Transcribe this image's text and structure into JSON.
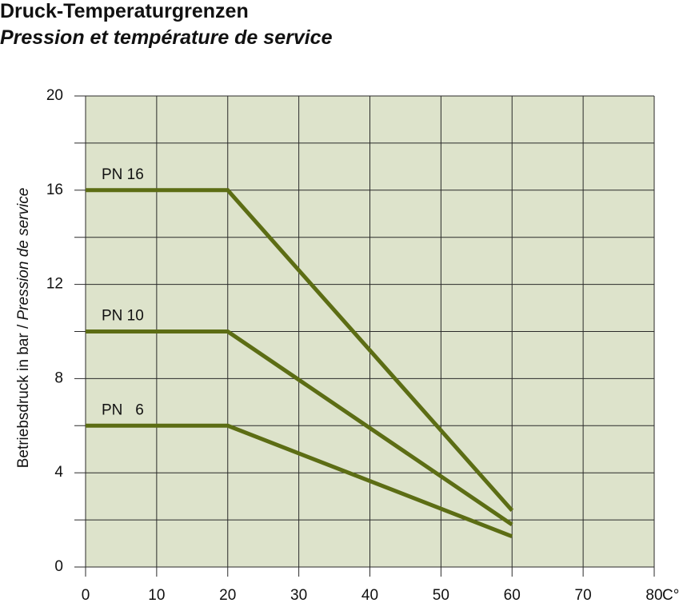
{
  "chart_data": {
    "type": "line",
    "title": "Druck-Temperaturgrenzen",
    "subtitle": "Pression et température de service",
    "ylabel": [
      "Betriebsdruck in bar / ",
      "Pression de service"
    ],
    "xlabel": "C°",
    "x": [
      0,
      20,
      60
    ],
    "series": [
      {
        "name": "PN 16",
        "color": "#5c6d14",
        "values": [
          16,
          16,
          2.4
        ]
      },
      {
        "name": "PN 10",
        "color": "#5c6d14",
        "values": [
          10,
          10,
          1.8
        ]
      },
      {
        "name": "PN   6",
        "color": "#5c6d14",
        "values": [
          6,
          6,
          1.3
        ]
      }
    ],
    "xlim": [
      0,
      80
    ],
    "xticks": [
      0,
      10,
      20,
      30,
      40,
      50,
      60,
      70,
      80
    ],
    "ylim": [
      0,
      20
    ],
    "yticks": [
      0,
      4,
      8,
      12,
      16,
      20
    ],
    "minor_yticks": [
      2,
      6,
      10,
      14,
      18
    ],
    "grid": true,
    "background": "#dde3cb"
  }
}
